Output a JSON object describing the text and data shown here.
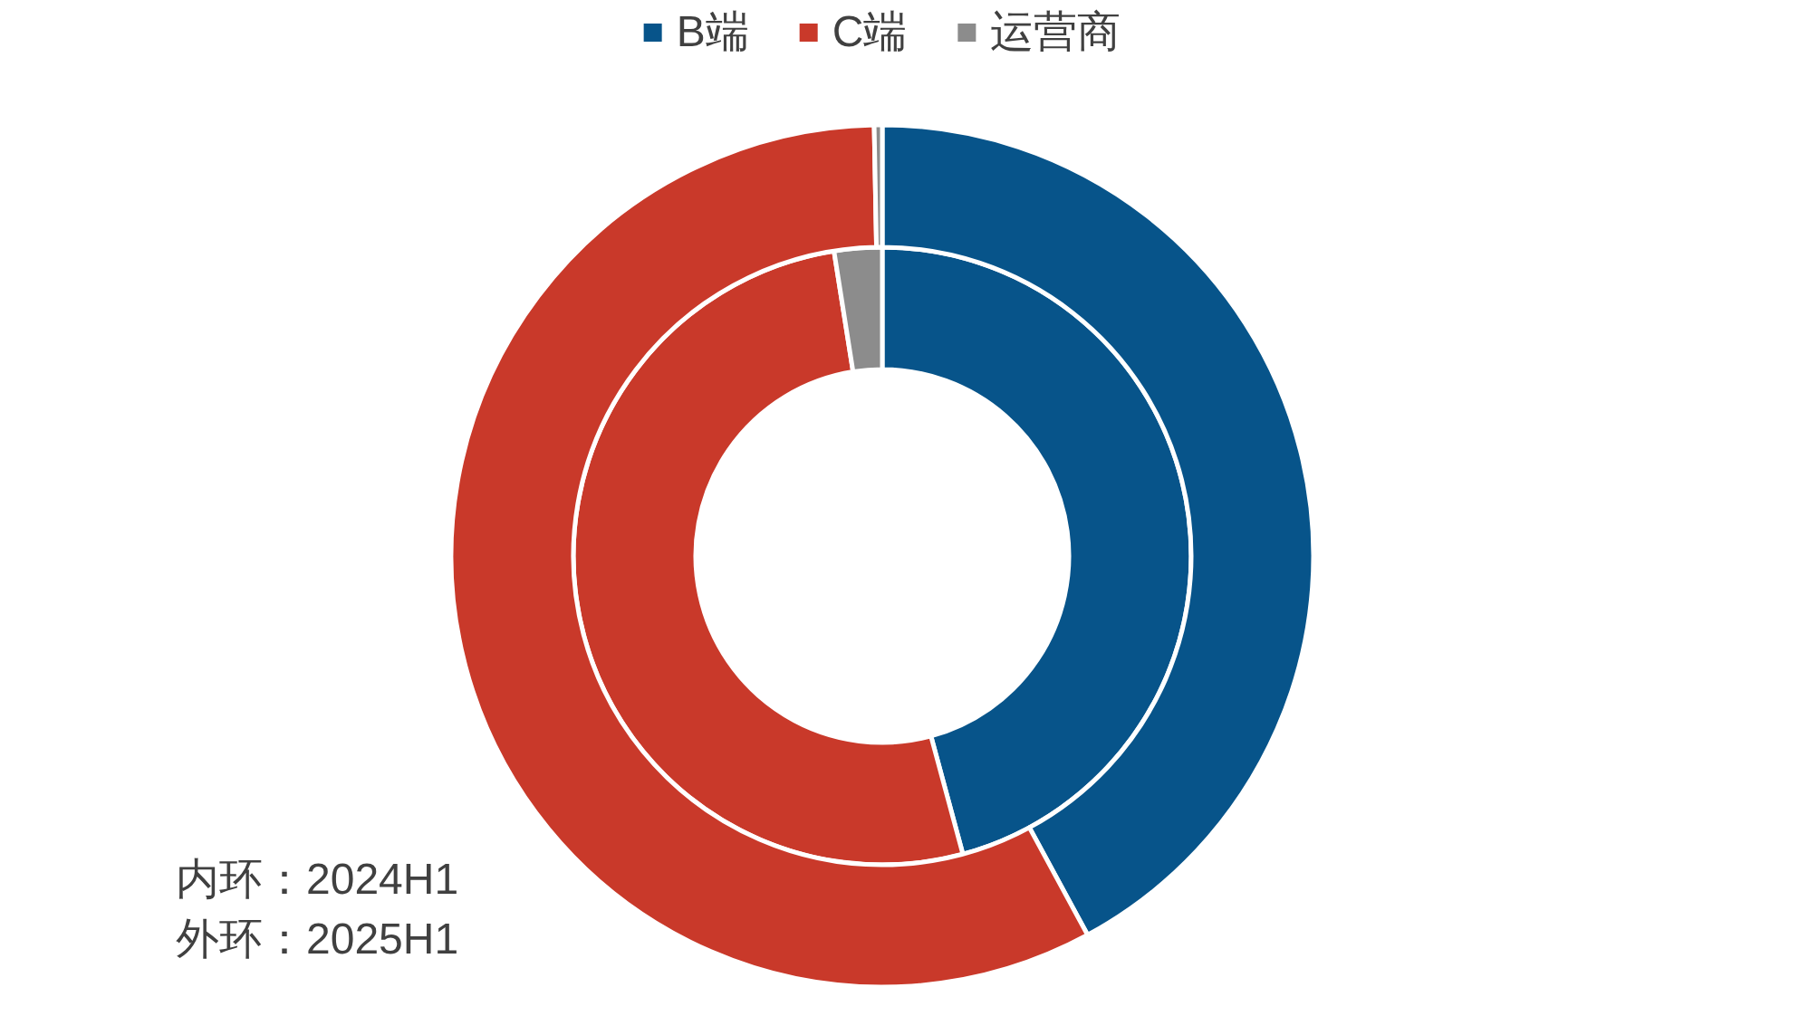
{
  "chart_data": {
    "type": "donut",
    "categories": [
      "B端",
      "C端",
      "运营商"
    ],
    "colors": [
      "#07548a",
      "#c9392a",
      "#8c8c8c"
    ],
    "series": [
      {
        "values": [
          45.8,
          51.7,
          2.5
        ]
      },
      {
        "values": [
          42.1,
          57.6,
          0.3
        ]
      }
    ],
    "legend": "top",
    "annotations": [
      "内环：2024H1",
      "外环：2025H1"
    ]
  }
}
